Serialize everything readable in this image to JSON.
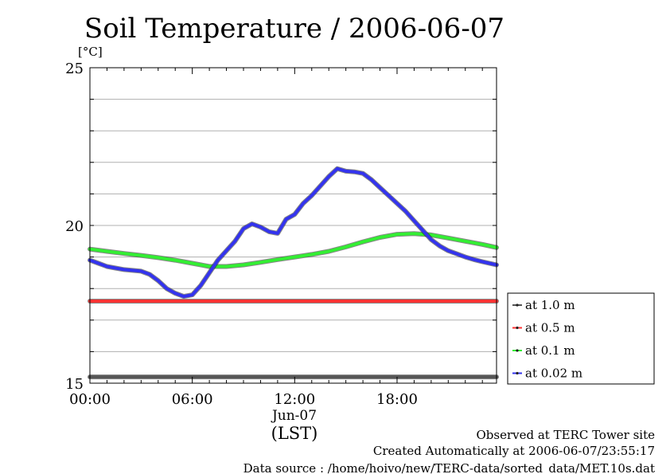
{
  "chart_data": {
    "type": "line",
    "title": "Soil Temperature / 2006-06-07",
    "ylabel": "[°C]",
    "xlabel": "(LST)",
    "x_date_label": "Jun-07",
    "ylim": [
      15,
      25
    ],
    "yticks": [
      15,
      20,
      25
    ],
    "xlim_hours": [
      0,
      23.83
    ],
    "xticks": [
      {
        "hour": 0,
        "label": "00:00"
      },
      {
        "hour": 6,
        "label": "06:00"
      },
      {
        "hour": 12,
        "label": "12:00"
      },
      {
        "hour": 18,
        "label": "18:00"
      }
    ],
    "grid": true,
    "legend_position": "right",
    "series": [
      {
        "name": "at 1.0 m",
        "color": "#555555",
        "x": [
          0,
          6,
          12,
          18,
          23.83
        ],
        "y": [
          15.2,
          15.2,
          15.2,
          15.2,
          15.2
        ]
      },
      {
        "name": "at 0.5 m",
        "color": "#ff3333",
        "x": [
          0,
          6,
          12,
          18,
          23.83
        ],
        "y": [
          17.6,
          17.6,
          17.6,
          17.6,
          17.6
        ]
      },
      {
        "name": "at 0.1 m",
        "color": "#33ee33",
        "x": [
          0,
          1,
          2,
          3,
          4,
          5,
          6,
          7,
          8,
          9,
          10,
          11,
          12,
          13,
          14,
          15,
          16,
          17,
          18,
          19,
          20,
          21,
          22,
          23,
          23.83
        ],
        "y": [
          19.25,
          19.18,
          19.11,
          19.05,
          18.98,
          18.9,
          18.8,
          18.7,
          18.7,
          18.75,
          18.83,
          18.92,
          19.0,
          19.08,
          19.18,
          19.32,
          19.48,
          19.62,
          19.72,
          19.74,
          19.7,
          19.6,
          19.5,
          19.4,
          19.3
        ]
      },
      {
        "name": "at 0.02 m",
        "color": "#3333ee",
        "x": [
          0,
          0.5,
          1,
          1.5,
          2,
          3,
          3.5,
          4,
          4.5,
          5,
          5.5,
          6,
          6.5,
          7,
          7.5,
          8,
          8.5,
          9,
          9.5,
          10,
          10.5,
          11,
          11.5,
          12,
          12.5,
          13,
          13.5,
          14,
          14.5,
          15,
          15.5,
          16,
          16.5,
          17,
          17.5,
          18,
          18.5,
          19,
          19.5,
          20,
          20.5,
          21,
          21.5,
          22,
          22.5,
          23,
          23.83
        ],
        "y": [
          18.9,
          18.8,
          18.7,
          18.65,
          18.6,
          18.55,
          18.45,
          18.25,
          18.0,
          17.85,
          17.75,
          17.8,
          18.1,
          18.5,
          18.9,
          19.2,
          19.5,
          19.9,
          20.05,
          19.95,
          19.8,
          19.75,
          20.2,
          20.35,
          20.7,
          20.95,
          21.25,
          21.55,
          21.8,
          21.72,
          21.7,
          21.65,
          21.45,
          21.2,
          20.95,
          20.7,
          20.45,
          20.15,
          19.85,
          19.55,
          19.35,
          19.2,
          19.1,
          19.0,
          18.92,
          18.85,
          18.75
        ]
      }
    ]
  },
  "footer": {
    "observed": "Observed at TERC Tower site",
    "created": "Created Automatically at 2006-06-07/23:55:17",
    "source": "Data source : /home/hoivo/new/TERC-data/sorted_data/MET.10s.dat"
  }
}
